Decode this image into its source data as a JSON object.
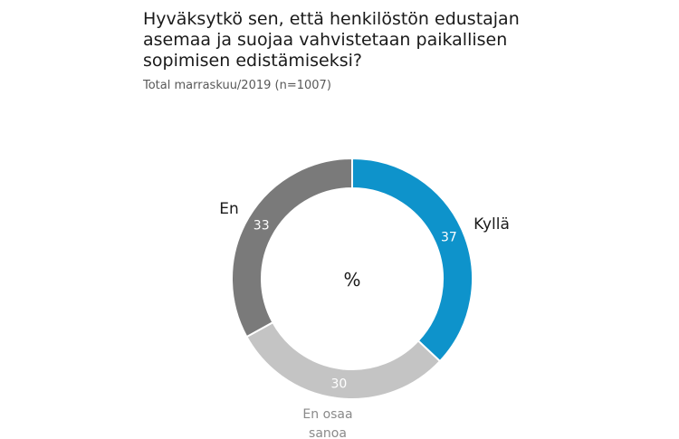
{
  "title": "Hyväksytkö sen, että henkilöstön edustajan asemaa ja suojaa vahvistetaan paikallisen sopimisen edistämiseksi?",
  "subtitle": "Total marraskuu/2019 (n=1007)",
  "chart_data": {
    "type": "pie",
    "variant": "donut",
    "center_label": "%",
    "slices": [
      {
        "label": "Kyllä",
        "value": 37,
        "color": "#0e93cb"
      },
      {
        "label": "En osaa sanoa",
        "value": 30,
        "color": "#c4c4c4"
      },
      {
        "label": "En",
        "value": 33,
        "color": "#7a7a7a"
      }
    ],
    "legend": "none"
  }
}
